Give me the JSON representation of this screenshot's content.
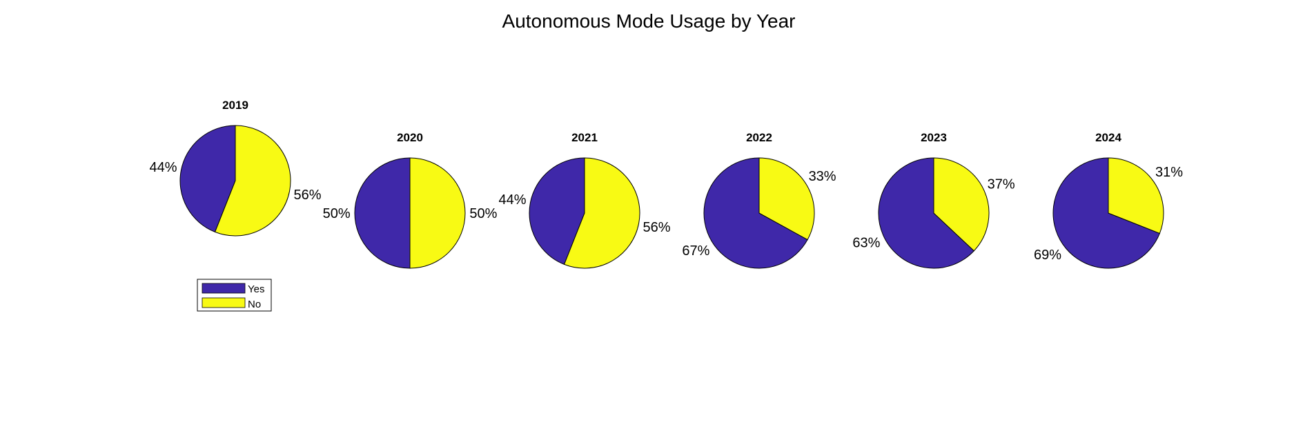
{
  "chart_data": {
    "type": "pie",
    "title": "Autonomous Mode Usage by Year",
    "labels": [
      "Yes",
      "No"
    ],
    "colors": {
      "Yes": "#3f28a9",
      "No": "#f8fa14"
    },
    "legend": {
      "position": "below-first-pie",
      "entries": [
        "Yes",
        "No"
      ]
    },
    "pies": [
      {
        "title": "2019",
        "values": [
          44,
          56
        ],
        "labels_text": [
          "44%",
          "56%"
        ]
      },
      {
        "title": "2020",
        "values": [
          50,
          50
        ],
        "labels_text": [
          "50%",
          "50%"
        ]
      },
      {
        "title": "2021",
        "values": [
          44,
          56
        ],
        "labels_text": [
          "44%",
          "56%"
        ]
      },
      {
        "title": "2022",
        "values": [
          67,
          33
        ],
        "labels_text": [
          "67%",
          "33%"
        ]
      },
      {
        "title": "2023",
        "values": [
          63,
          37
        ],
        "labels_text": [
          "63%",
          "37%"
        ]
      },
      {
        "title": "2024",
        "values": [
          69,
          31
        ],
        "labels_text": [
          "69%",
          "31%"
        ]
      }
    ]
  }
}
